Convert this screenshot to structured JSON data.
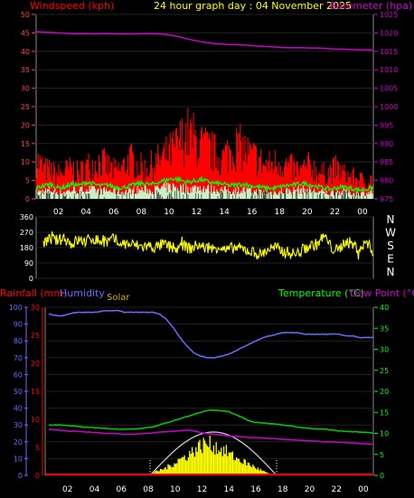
{
  "header": {
    "wind_title": "Windspeed (kph)",
    "center_title": "24 hour graph day : 04 November 2025",
    "baro_title": "Barometer (hpa)"
  },
  "colors": {
    "wind_gust": "#ff0000",
    "wind_avg": "#00ff00",
    "wind_floor": "#c8f0c8",
    "barometer": "#cc00cc",
    "direction": "#ffff00",
    "humidity": "#6a6aff",
    "temperature": "#00cc00",
    "dewpoint": "#cc00cc",
    "solar": "#ffff00",
    "solar_curve": "#c8c8c8",
    "rain": "#ff0000",
    "axis_left": "#ff4040",
    "axis_right_top": "#cc00cc",
    "axis_right_bottom": "#00ff00",
    "tick_x": "#ffff00"
  },
  "x_labels": [
    "02",
    "04",
    "06",
    "08",
    "10",
    "12",
    "14",
    "16",
    "18",
    "20",
    "22",
    "00"
  ],
  "chart_data": [
    {
      "type": "area",
      "id": "wind",
      "title": "Windspeed (kph)",
      "y_ticks": [
        0,
        5,
        10,
        15,
        20,
        25,
        30,
        35,
        40,
        45,
        50
      ],
      "ylim": [
        0,
        50
      ],
      "series": [
        {
          "name": "gust_peaks",
          "values": [
            16,
            12,
            11,
            10,
            11,
            12,
            10,
            13,
            14,
            15,
            13,
            11,
            12,
            16,
            14,
            12,
            13,
            15,
            17,
            19,
            22,
            26,
            24,
            21,
            20,
            18,
            16,
            19,
            21,
            20,
            17,
            16,
            13,
            14,
            15,
            13,
            12,
            11,
            13,
            12,
            10,
            11,
            12,
            10,
            9,
            8,
            7,
            8
          ]
        },
        {
          "name": "average",
          "values": [
            3,
            3.5,
            4,
            3,
            3.2,
            4,
            3.6,
            4.5,
            4,
            3.5,
            3.8,
            3.2,
            3,
            3.5,
            4,
            4.2,
            3.8,
            4.5,
            5,
            5.5,
            5.2,
            4.5,
            4.8,
            5.2,
            4.6,
            4.2,
            4,
            3.6,
            3.8,
            4,
            3.5,
            3.2,
            3,
            2.8,
            3.2,
            3.6,
            3.8,
            4.2,
            4,
            3.4,
            3,
            2.6,
            3,
            3.2,
            2.8,
            2.4,
            2.6,
            3
          ]
        }
      ]
    },
    {
      "type": "line",
      "id": "barometer",
      "title": "Barometer (hpa)",
      "y_ticks": [
        975,
        980,
        985,
        990,
        995,
        1000,
        1005,
        1010,
        1015,
        1020,
        1025
      ],
      "ylim": [
        975,
        1025
      ],
      "values": [
        1020.3,
        1020.2,
        1020.1,
        1020.0,
        1019.9,
        1019.8,
        1019.8,
        1019.8,
        1019.7,
        1019.8,
        1019.8,
        1019.7,
        1019.7,
        1019.7,
        1019.7,
        1019.8,
        1019.8,
        1019.7,
        1019.6,
        1019.3,
        1018.9,
        1018.4,
        1018.0,
        1017.6,
        1017.3,
        1017.1,
        1017.0,
        1016.8,
        1016.8,
        1016.7,
        1016.6,
        1016.4,
        1016.3,
        1016.2,
        1016.1,
        1016.0,
        1016.0,
        1016.0,
        1015.9,
        1015.9,
        1015.8,
        1015.7,
        1015.6,
        1015.6,
        1015.5,
        1015.4,
        1015.4,
        1015.3
      ]
    },
    {
      "type": "line",
      "id": "direction",
      "y_ticks": [
        0,
        90,
        180,
        270,
        360
      ],
      "ylim": [
        0,
        360
      ],
      "compass": [
        "N",
        "W",
        "S",
        "E",
        "N"
      ],
      "values": [
        210,
        230,
        220,
        240,
        200,
        225,
        215,
        235,
        220,
        210,
        230,
        205,
        200,
        195,
        185,
        190,
        180,
        200,
        185,
        170,
        190,
        175,
        195,
        180,
        170,
        190,
        160,
        180,
        175,
        165,
        150,
        140,
        170,
        180,
        160,
        150,
        140,
        170,
        190,
        200,
        250,
        180,
        160,
        220,
        200,
        170,
        210,
        160
      ]
    },
    {
      "type": "line",
      "id": "humidity",
      "y_ticks": [
        0,
        10,
        20,
        30,
        40,
        50,
        60,
        70,
        80,
        90,
        100
      ],
      "ylim": [
        0,
        100
      ],
      "series_label": "Humidity",
      "values": [
        96,
        95,
        95,
        96,
        97,
        97,
        97,
        97,
        98,
        98,
        98,
        97,
        97,
        97,
        97,
        97,
        96,
        93,
        88,
        82,
        77,
        73,
        71,
        70,
        70,
        71,
        72,
        74,
        76,
        78,
        80,
        82,
        83,
        84,
        85,
        85,
        85,
        84,
        84,
        84,
        84,
        84,
        84,
        83,
        83,
        82,
        82,
        82
      ]
    },
    {
      "type": "line",
      "id": "temperature",
      "y_ticks": [
        0,
        5,
        10,
        15,
        20,
        25,
        30,
        35,
        40
      ],
      "ylim": [
        0,
        40
      ],
      "series_label": "Temperature (°C)",
      "values": [
        12.0,
        12.0,
        12.0,
        11.8,
        11.7,
        11.5,
        11.4,
        11.3,
        11.2,
        11.1,
        11.0,
        11.0,
        11.0,
        11.1,
        11.3,
        11.5,
        12.0,
        12.5,
        13.0,
        13.5,
        14.0,
        14.5,
        15.0,
        15.5,
        15.5,
        15.4,
        15.2,
        14.5,
        13.8,
        13.0,
        12.6,
        12.5,
        12.3,
        12.2,
        12.0,
        11.8,
        11.5,
        11.3,
        11.2,
        11.0,
        11.0,
        10.8,
        10.6,
        10.5,
        10.4,
        10.3,
        10.2,
        10.1
      ]
    },
    {
      "type": "line",
      "id": "dewpoint",
      "y_ticks": [
        0,
        5,
        10,
        15,
        20,
        25,
        30,
        35,
        40
      ],
      "ylim": [
        0,
        40
      ],
      "series_label": "Dew Point (°C)",
      "values": [
        11.0,
        10.8,
        10.7,
        10.5,
        10.5,
        10.4,
        10.3,
        10.2,
        10.0,
        10.0,
        9.9,
        9.8,
        9.8,
        9.9,
        10.0,
        10.1,
        10.3,
        10.4,
        10.5,
        10.6,
        10.8,
        10.6,
        10.2,
        10.0,
        9.8,
        9.6,
        9.4,
        9.3,
        9.2,
        9.0,
        9.0,
        8.9,
        8.8,
        8.7,
        8.6,
        8.5,
        8.4,
        8.3,
        8.2,
        8.1,
        8.0,
        8.0,
        7.9,
        7.8,
        7.7,
        7.6,
        7.5,
        7.4
      ]
    },
    {
      "type": "area",
      "id": "solar",
      "series_label": "Solar",
      "values": [
        0,
        0,
        0,
        0,
        0,
        0,
        0,
        0,
        0,
        0,
        0,
        0,
        0,
        0,
        0,
        0.05,
        0.12,
        0.2,
        0.3,
        0.45,
        0.55,
        0.7,
        0.85,
        0.95,
        0.9,
        0.8,
        0.7,
        0.55,
        0.45,
        0.35,
        0.25,
        0.15,
        0.05,
        0,
        0,
        0,
        0,
        0,
        0,
        0,
        0,
        0,
        0,
        0,
        0,
        0,
        0,
        0
      ]
    },
    {
      "type": "line",
      "id": "rainfall",
      "y_ticks": [
        0,
        5,
        10,
        15,
        20,
        25,
        30
      ],
      "ylim": [
        0,
        30
      ],
      "series_label": "Rainfall (mm)",
      "values": [
        0.3,
        0.3,
        0.3,
        0.3
      ]
    }
  ],
  "bottom": {
    "rain_label": "Rainfall (mm)",
    "humidity_label": "Humidity",
    "solar_label": "Solar",
    "temp_label": "Temperature (°C)",
    "dew_label": "Dew Point (°C)"
  }
}
